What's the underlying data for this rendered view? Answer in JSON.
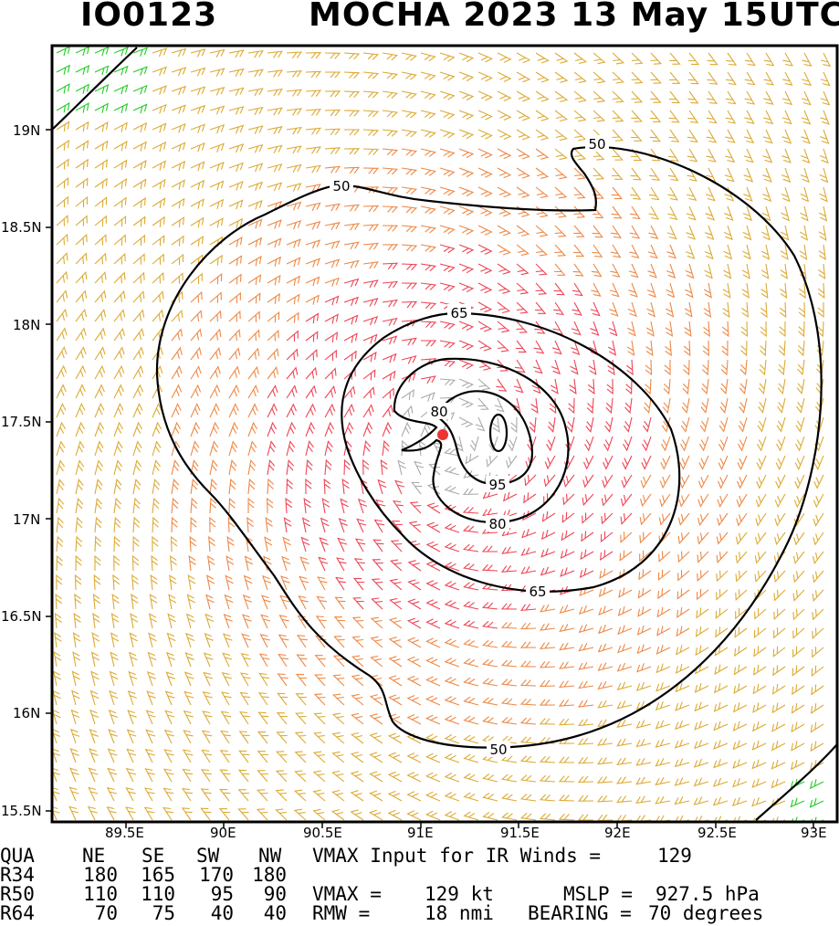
{
  "header": {
    "storm_id": "IO0123",
    "title": "MOCHA 2023 13 May 15UTC"
  },
  "map": {
    "lat_labels": [
      "19N",
      "18.5N",
      "18N",
      "17.5N",
      "17N",
      "16.5N",
      "16N",
      "15.5N"
    ],
    "lon_labels": [
      "89.5E",
      "90E",
      "90.5E",
      "91E",
      "91.5E",
      "92E",
      "92.5E",
      "93E"
    ],
    "contour_labels": [
      "50",
      "50",
      "65",
      "65",
      "80",
      "80",
      "95",
      "50"
    ],
    "center": {
      "lon": 91.12,
      "lat": 17.43
    },
    "colors": {
      "calm": "#aaaaaa",
      "weak": "#22cc22",
      "gale": "#ddaa33",
      "storm": "#ee8844",
      "hurricane": "#ee4455",
      "center": "#ee3333",
      "contour": "#000000"
    }
  },
  "stats": {
    "radii_header": [
      "QUA",
      "NE",
      "SE",
      "SW",
      "NW"
    ],
    "radii": [
      [
        "R34",
        "180",
        "165",
        "170",
        "180"
      ],
      [
        "R50",
        "110",
        "110",
        "95",
        "90"
      ],
      [
        "R64",
        "70",
        "75",
        "40",
        "40"
      ]
    ],
    "vmax_input_label": "VMAX Input for IR Winds =",
    "vmax_input_value": "129",
    "vmax_label": "VMAX =",
    "vmax_value": "129 kt",
    "mslp_label": "MSLP =",
    "mslp_value": "927.5 hPa",
    "rmw_label": "RMW =",
    "rmw_value": "18 nmi",
    "bearing_label": "BEARING =",
    "bearing_value": "70 degrees"
  }
}
